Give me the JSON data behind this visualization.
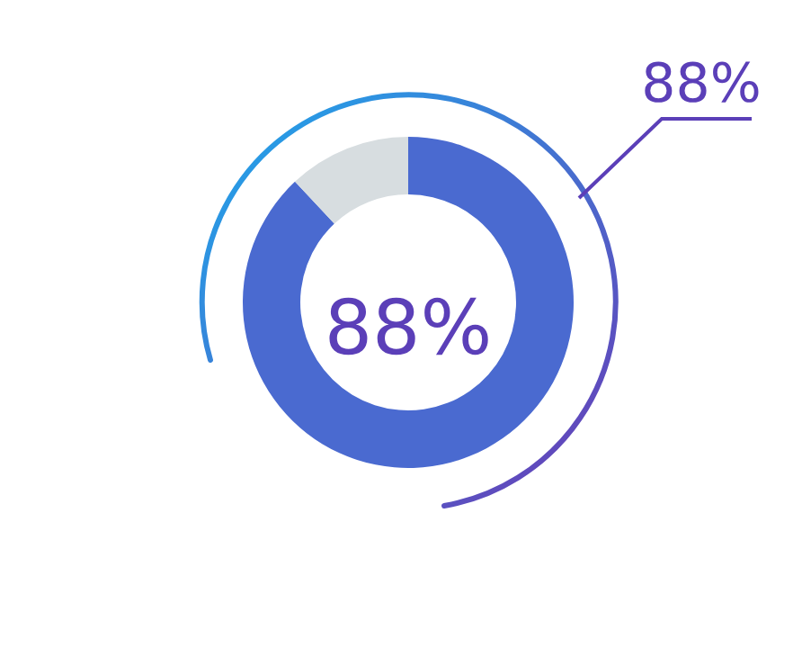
{
  "chart_data": {
    "type": "donut",
    "categories": [
      null,
      null
    ],
    "values": [
      88,
      12
    ],
    "colors": [
      "#4a6ad0",
      "#d7dde0"
    ],
    "annotations": [
      "88%",
      "88%"
    ]
  }
}
